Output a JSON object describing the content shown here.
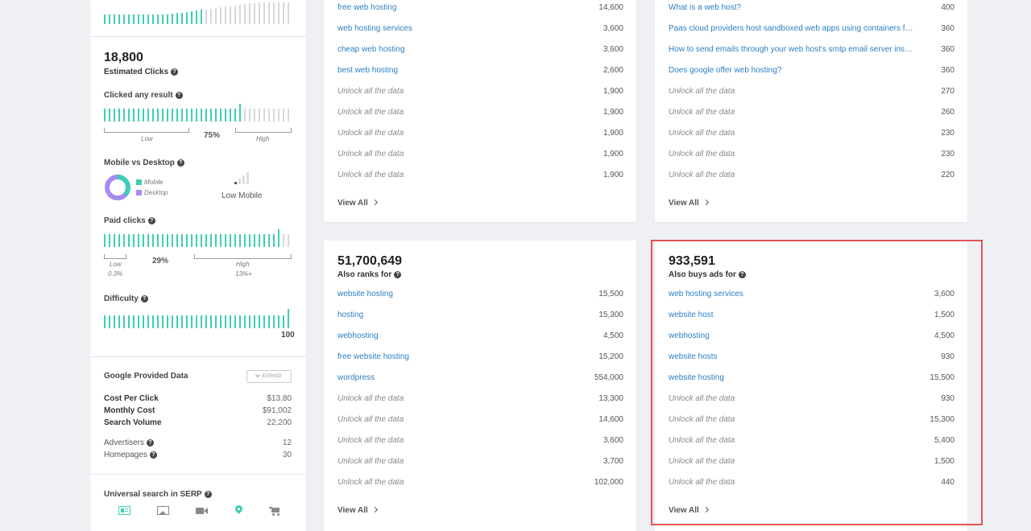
{
  "sidebar": {
    "estimated_clicks": {
      "value": "18,800",
      "label": "Estimated Clicks"
    },
    "clicked_any": {
      "label": "Clicked any result",
      "low": "Low",
      "high": "High",
      "percent": "75%",
      "level": 0.75
    },
    "mobile_desktop": {
      "label": "Mobile vs Desktop",
      "legend_mobile": "Mobile",
      "legend_desktop": "Desktop",
      "status": "Low Mobile",
      "colors": {
        "mobile": "#3ecfb5",
        "desktop": "#a78bf0"
      }
    },
    "paid_clicks": {
      "label": "Paid clicks",
      "low": "Low",
      "low_val": "0.3%",
      "percent": "29%",
      "high": "High",
      "high_val": "13%+",
      "level": 0.29
    },
    "difficulty": {
      "label": "Difficulty",
      "value": "100",
      "level": 1.0
    },
    "google_data": {
      "title": "Google Provided Data",
      "expand": "EXPAND",
      "rows": [
        {
          "k": "Cost Per Click",
          "v": "$13.80"
        },
        {
          "k": "Monthly Cost",
          "v": "$91,002"
        },
        {
          "k": "Search Volume",
          "v": "22,200"
        }
      ],
      "rows2": [
        {
          "k": "Advertisers",
          "v": "12"
        },
        {
          "k": "Homepages",
          "v": "30"
        }
      ]
    },
    "universal": {
      "label": "Universal search in SERP",
      "icons": [
        "news-icon",
        "image-icon",
        "video-icon",
        "map-pin-icon",
        "cart-icon"
      ]
    }
  },
  "card_top_left": {
    "rows": [
      {
        "kw": "free web hosting",
        "vol": "14,600",
        "locked": false
      },
      {
        "kw": "web hosting services",
        "vol": "3,600",
        "locked": false
      },
      {
        "kw": "cheap web hosting",
        "vol": "3,600",
        "locked": false
      },
      {
        "kw": "best web hosting",
        "vol": "2,600",
        "locked": false
      },
      {
        "kw": "Unlock all the data",
        "vol": "1,900",
        "locked": true
      },
      {
        "kw": "Unlock all the data",
        "vol": "1,900",
        "locked": true
      },
      {
        "kw": "Unlock all the data",
        "vol": "1,900",
        "locked": true
      },
      {
        "kw": "Unlock all the data",
        "vol": "1,900",
        "locked": true
      },
      {
        "kw": "Unlock all the data",
        "vol": "1,900",
        "locked": true
      }
    ],
    "view_all": "View All"
  },
  "card_top_right": {
    "rows": [
      {
        "kw": "What is a web host?",
        "vol": "400",
        "locked": false
      },
      {
        "kw": "Paas cloud providers host sandboxed web apps using containers for s...",
        "vol": "360",
        "locked": false
      },
      {
        "kw": "How to send emails through your web host's smtp email server instead",
        "vol": "360",
        "locked": false
      },
      {
        "kw": "Does google offer web hosting?",
        "vol": "360",
        "locked": false
      },
      {
        "kw": "Unlock all the data",
        "vol": "270",
        "locked": true
      },
      {
        "kw": "Unlock all the data",
        "vol": "260",
        "locked": true
      },
      {
        "kw": "Unlock all the data",
        "vol": "230",
        "locked": true
      },
      {
        "kw": "Unlock all the data",
        "vol": "230",
        "locked": true
      },
      {
        "kw": "Unlock all the data",
        "vol": "220",
        "locked": true
      }
    ],
    "view_all": "View All"
  },
  "card_also_ranks": {
    "count": "51,700,649",
    "title": "Also ranks for",
    "rows": [
      {
        "kw": "website hosting",
        "vol": "15,500",
        "locked": false
      },
      {
        "kw": "hosting",
        "vol": "15,300",
        "locked": false
      },
      {
        "kw": "webhosting",
        "vol": "4,500",
        "locked": false
      },
      {
        "kw": "free website hosting",
        "vol": "15,200",
        "locked": false
      },
      {
        "kw": "wordpress",
        "vol": "554,000",
        "locked": false
      },
      {
        "kw": "Unlock all the data",
        "vol": "13,300",
        "locked": true
      },
      {
        "kw": "Unlock all the data",
        "vol": "14,600",
        "locked": true
      },
      {
        "kw": "Unlock all the data",
        "vol": "3,600",
        "locked": true
      },
      {
        "kw": "Unlock all the data",
        "vol": "3,700",
        "locked": true
      },
      {
        "kw": "Unlock all the data",
        "vol": "102,000",
        "locked": true
      }
    ],
    "view_all": "View All"
  },
  "card_also_buys": {
    "count": "933,591",
    "title": "Also buys ads for",
    "rows": [
      {
        "kw": "web hosting services",
        "vol": "3,600",
        "locked": false
      },
      {
        "kw": "website host",
        "vol": "1,500",
        "locked": false
      },
      {
        "kw": "webhosting",
        "vol": "4,500",
        "locked": false
      },
      {
        "kw": "website hosts",
        "vol": "930",
        "locked": false
      },
      {
        "kw": "website hosting",
        "vol": "15,500",
        "locked": false
      },
      {
        "kw": "Unlock all the data",
        "vol": "930",
        "locked": true
      },
      {
        "kw": "Unlock all the data",
        "vol": "15,300",
        "locked": true
      },
      {
        "kw": "Unlock all the data",
        "vol": "5,400",
        "locked": true
      },
      {
        "kw": "Unlock all the data",
        "vol": "1,500",
        "locked": true
      },
      {
        "kw": "Unlock all the data",
        "vol": "440",
        "locked": true
      }
    ],
    "view_all": "View All"
  },
  "colors": {
    "accent": "#3ecfb5",
    "link": "#2b7fc3",
    "highlight": "#e05555",
    "inactive_bar": "#d8d8d8"
  }
}
